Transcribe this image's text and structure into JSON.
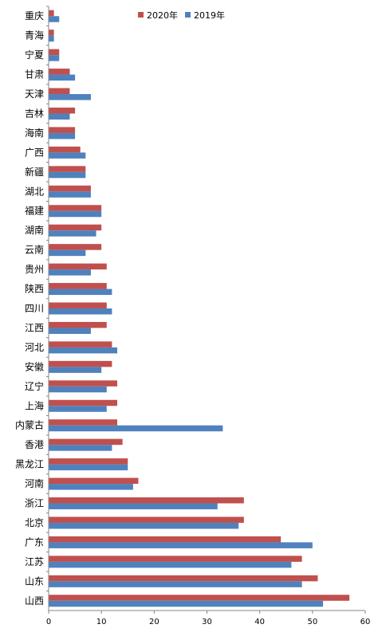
{
  "chart_data": {
    "type": "bar",
    "orientation": "horizontal",
    "categories": [
      "山西",
      "山东",
      "江苏",
      "广东",
      "北京",
      "浙江",
      "河南",
      "黑龙江",
      "香港",
      "内蒙古",
      "上海",
      "辽宁",
      "安徽",
      "河北",
      "江西",
      "四川",
      "陕西",
      "贵州",
      "云南",
      "湖南",
      "福建",
      "湖北",
      "新疆",
      "广西",
      "海南",
      "吉林",
      "天津",
      "甘肃",
      "宁夏",
      "青海",
      "重庆"
    ],
    "series": [
      {
        "name": "2020年",
        "color": "#c0504d",
        "values": [
          57,
          51,
          48,
          44,
          37,
          37,
          17,
          15,
          14,
          13,
          13,
          13,
          12,
          12,
          11,
          11,
          11,
          11,
          10,
          10,
          10,
          8,
          7,
          6,
          5,
          5,
          4,
          4,
          2,
          1,
          1
        ]
      },
      {
        "name": "2019年",
        "color": "#4f81bd",
        "values": [
          52,
          48,
          46,
          50,
          36,
          32,
          16,
          15,
          12,
          33,
          11,
          11,
          10,
          13,
          8,
          12,
          12,
          8,
          7,
          9,
          10,
          8,
          7,
          7,
          5,
          4,
          8,
          5,
          2,
          1,
          2
        ]
      }
    ],
    "xlim": [
      0,
      60
    ],
    "xticks": [
      0,
      10,
      20,
      30,
      40,
      50,
      60
    ],
    "grid": false,
    "legend_position": "top"
  }
}
